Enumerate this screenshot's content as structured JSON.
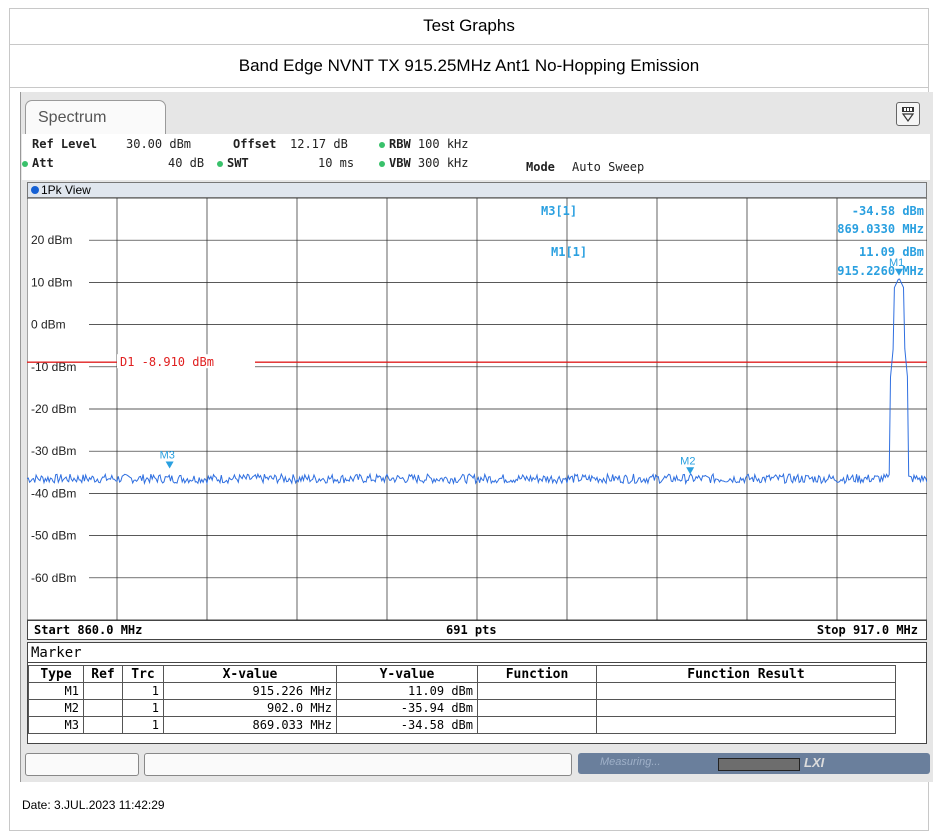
{
  "header": {
    "title": "Test Graphs",
    "subtitle": "Band Edge NVNT TX 915.25MHz Ant1 No-Hopping Emission"
  },
  "spectrum": {
    "tab_label": "Spectrum",
    "params": {
      "ref_level_label": "Ref Level",
      "ref_level_value": "30.00 dBm",
      "offset_label": "Offset",
      "offset_value": "12.17 dB",
      "rbw_label": "RBW",
      "rbw_value": "100 kHz",
      "att_label": "Att",
      "att_value": "40 dB",
      "swt_label": "SWT",
      "swt_value": "10 ms",
      "vbw_label": "VBW",
      "vbw_value": "300 kHz",
      "mode_label": "Mode",
      "mode_value": "Auto Sweep"
    },
    "view_label": "1Pk View",
    "freq_start": "Start 860.0 MHz",
    "pts": "691 pts",
    "freq_stop": "Stop 917.0 MHz",
    "marker_readout": {
      "m3_label": "M3[1]",
      "m3_level": "-34.58 dBm",
      "m3_freq": "869.0330 MHz",
      "m1_label": "M1[1]",
      "m1_level": "11.09 dBm",
      "m1_freq": "915.2260 MHz"
    },
    "display_line": "D1  -8.910 dBm",
    "marker_table": {
      "title": "Marker",
      "columns": [
        "Type",
        "Ref",
        "Trc",
        "X-value",
        "Y-value",
        "Function",
        "Function Result"
      ],
      "rows": [
        [
          "M1",
          "",
          "1",
          "915.226 MHz",
          "11.09 dBm",
          "",
          ""
        ],
        [
          "M2",
          "",
          "1",
          "902.0 MHz",
          "-35.94 dBm",
          "",
          ""
        ],
        [
          "M3",
          "",
          "1",
          "869.033 MHz",
          "-34.58 dBm",
          "",
          ""
        ]
      ]
    },
    "status": {
      "measuring": "Measuring...",
      "lxi": "LXI"
    },
    "date": "Date: 3.JUL.2023  11:42:29",
    "colors": {
      "trace": "#2f6fe0",
      "display_line": "#e02020",
      "marker": "#2aa0e0"
    }
  },
  "chart_data": {
    "type": "line",
    "xlim": [
      860.0,
      917.0
    ],
    "ylim": [
      -70,
      30
    ],
    "yticks": [
      "20 dBm",
      "10 dBm",
      "0 dBm",
      "-10 dBm",
      "-20 dBm",
      "-30 dBm",
      "-40 dBm",
      "-50 dBm",
      "-60 dBm"
    ],
    "ytick_values": [
      20,
      10,
      0,
      -10,
      -20,
      -30,
      -40,
      -50,
      -60
    ],
    "display_line_dbm": -8.91,
    "noise_floor_dbm": -36.5,
    "peak": {
      "x": 915.226,
      "y": 11.09
    },
    "markers": [
      {
        "name": "M1",
        "x": 915.226,
        "y": 11.09
      },
      {
        "name": "M2",
        "x": 902.0,
        "y": -35.94
      },
      {
        "name": "M3",
        "x": 869.033,
        "y": -34.58
      }
    ]
  }
}
